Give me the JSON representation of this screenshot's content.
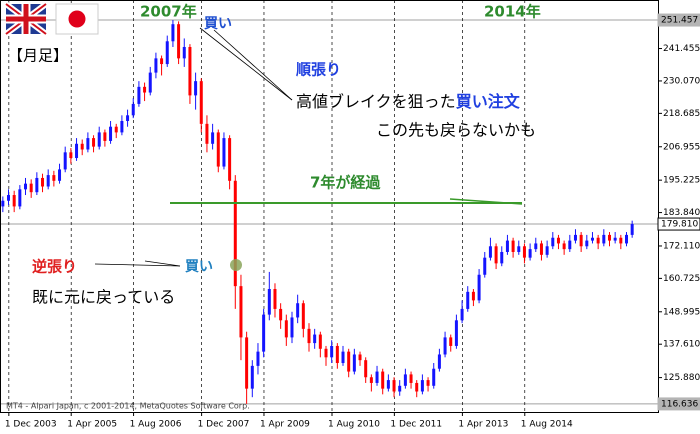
{
  "chart_data": {
    "type": "candlestick",
    "up_color": "#1414ff",
    "down_color": "#ff0000",
    "ylim": [
      114.5,
      258.5
    ],
    "yticks": [
      241.455,
      {
        "value": 230.07,
        "label": "230.070"
      },
      218.685,
      206.955,
      195.225,
      {
        "value": 183.84,
        "label": "183.840"
      },
      {
        "value": 172.11,
        "label": "172.110"
      },
      160.725,
      148.995,
      {
        "value": 137.61,
        "label": "137.610"
      },
      {
        "value": 125.88,
        "label": "125.880"
      }
    ],
    "price_lines": [
      {
        "value": 251.457,
        "color": "#b4b4b4"
      },
      {
        "value": 179.81,
        "label": "179.810",
        "color": "#ffffff"
      },
      {
        "value": 116.636,
        "color": "#b4b4b4"
      }
    ],
    "x_grid": true,
    "categories": [
      "1 Dec 2003",
      null,
      null,
      null,
      null,
      null,
      null,
      null,
      null,
      null,
      null,
      "1 Apr 2005",
      null,
      null,
      null,
      null,
      null,
      null,
      null,
      null,
      null,
      null,
      "1 Aug 2006",
      null,
      null,
      null,
      null,
      null,
      null,
      null,
      null,
      null,
      null,
      null,
      "1 Dec 2007",
      null,
      null,
      null,
      null,
      null,
      null,
      null,
      null,
      null,
      null,
      "1 Apr 2009",
      null,
      null,
      null,
      null,
      null,
      null,
      null,
      null,
      null,
      null,
      null,
      "1 Aug 2010",
      null,
      null,
      null,
      null,
      null,
      null,
      null,
      null,
      null,
      null,
      "1 Dec 2011",
      null,
      null,
      null,
      null,
      null,
      null,
      null,
      null,
      null,
      null,
      null,
      "1 Apr 2013",
      null,
      null,
      null,
      null,
      null,
      null,
      null,
      null,
      null,
      null,
      "1 Aug 2014",
      null,
      null,
      null,
      null,
      null,
      null,
      null,
      null,
      null,
      null,
      null,
      null,
      null,
      null,
      null,
      null,
      null,
      null,
      null,
      null
    ],
    "ohlc": [
      [
        186,
        189.5,
        184,
        188
      ],
      [
        188,
        192,
        186.5,
        190
      ],
      [
        190,
        191.5,
        184,
        186
      ],
      [
        186,
        193.5,
        185,
        192
      ],
      [
        192,
        196,
        190,
        194
      ],
      [
        194,
        195.5,
        189,
        191
      ],
      [
        191,
        198,
        190,
        196
      ],
      [
        196,
        197.5,
        191,
        193
      ],
      [
        193,
        199,
        192,
        197
      ],
      [
        197,
        198.5,
        193,
        195
      ],
      [
        195,
        201,
        194,
        199
      ],
      [
        199,
        207,
        198,
        205
      ],
      [
        205,
        206.5,
        201,
        203
      ],
      [
        203,
        210,
        202,
        208
      ],
      [
        208,
        209.5,
        204,
        206
      ],
      [
        206,
        212,
        205,
        210
      ],
      [
        210,
        211,
        205,
        207
      ],
      [
        207,
        214,
        206,
        212
      ],
      [
        212,
        213,
        207,
        209
      ],
      [
        209,
        216,
        208,
        214
      ],
      [
        214,
        215,
        210,
        212
      ],
      [
        212,
        218,
        211,
        216
      ],
      [
        216,
        220,
        214,
        218
      ],
      [
        218,
        224,
        217,
        222
      ],
      [
        222,
        230,
        221,
        228
      ],
      [
        228,
        229.5,
        223,
        226
      ],
      [
        226,
        235,
        225,
        233
      ],
      [
        233,
        240,
        231,
        238
      ],
      [
        238,
        239,
        232,
        236
      ],
      [
        236,
        246,
        235,
        244
      ],
      [
        244,
        251.457,
        242,
        250
      ],
      [
        250,
        251,
        236,
        238
      ],
      [
        238,
        245,
        235,
        242
      ],
      [
        242,
        243,
        222,
        225
      ],
      [
        225,
        233,
        220,
        230
      ],
      [
        230,
        231,
        212,
        215
      ],
      [
        215,
        218,
        205,
        208
      ],
      [
        208,
        215,
        206,
        212
      ],
      [
        212,
        213,
        198,
        200
      ],
      [
        200,
        212,
        199,
        210
      ],
      [
        210,
        211,
        192,
        195
      ],
      [
        195,
        197,
        150,
        158
      ],
      [
        158,
        162,
        132,
        140
      ],
      [
        140,
        142,
        116.636,
        122
      ],
      [
        122,
        132,
        119,
        130
      ],
      [
        130,
        138,
        127,
        135
      ],
      [
        135,
        150,
        133,
        148
      ],
      [
        148,
        163,
        146,
        157
      ],
      [
        157,
        159,
        147,
        150
      ],
      [
        150,
        152,
        143,
        146
      ],
      [
        146,
        148,
        137,
        140
      ],
      [
        140,
        149,
        138,
        147
      ],
      [
        147,
        155,
        145,
        152
      ],
      [
        152,
        153,
        140,
        143
      ],
      [
        143,
        145,
        135,
        138
      ],
      [
        138,
        143,
        136,
        141
      ],
      [
        141,
        142,
        133,
        136
      ],
      [
        136,
        137,
        130,
        133
      ],
      [
        133,
        139,
        131,
        137
      ],
      [
        137,
        138,
        129,
        131
      ],
      [
        131,
        137,
        130,
        135
      ],
      [
        135,
        136,
        126,
        128
      ],
      [
        128,
        136,
        127,
        134
      ],
      [
        134,
        135,
        130,
        132
      ],
      [
        132,
        133,
        124,
        126
      ],
      [
        126,
        127,
        121,
        124
      ],
      [
        124,
        130,
        123,
        128
      ],
      [
        128,
        129,
        120,
        122
      ],
      [
        122,
        127,
        121,
        125
      ],
      [
        125,
        126,
        119,
        121
      ],
      [
        121,
        125,
        119.5,
        123
      ],
      [
        123,
        129,
        122,
        127
      ],
      [
        127,
        128,
        122,
        124
      ],
      [
        124,
        125,
        119,
        121
      ],
      [
        121,
        127,
        120,
        125
      ],
      [
        125,
        126,
        121,
        123
      ],
      [
        123,
        131,
        122,
        129
      ],
      [
        129,
        136,
        128,
        134
      ],
      [
        134,
        142,
        133,
        140
      ],
      [
        140,
        141,
        135,
        137
      ],
      [
        137,
        148,
        136,
        146
      ],
      [
        146,
        153,
        145,
        150
      ],
      [
        150,
        158,
        149,
        156
      ],
      [
        156,
        157,
        151,
        153
      ],
      [
        153,
        164,
        152,
        162
      ],
      [
        162,
        170,
        161,
        168
      ],
      [
        168,
        175,
        167,
        172
      ],
      [
        172,
        173,
        164,
        166
      ],
      [
        166,
        172,
        165,
        170
      ],
      [
        170,
        176,
        169,
        174
      ],
      [
        174,
        175,
        168,
        170
      ],
      [
        170,
        174,
        169,
        172
      ],
      [
        172,
        173,
        166,
        168
      ],
      [
        168,
        173,
        167,
        171
      ],
      [
        171,
        175,
        170,
        173
      ],
      [
        173,
        174,
        167,
        169
      ],
      [
        169,
        174,
        168,
        172
      ],
      [
        172,
        177,
        171,
        175
      ],
      [
        175,
        176,
        171,
        173
      ],
      [
        173,
        174,
        169,
        171
      ],
      [
        171,
        176,
        170,
        174
      ],
      [
        174,
        178,
        173,
        176
      ],
      [
        176,
        177,
        170,
        172
      ],
      [
        172,
        176,
        171,
        174
      ],
      [
        174,
        177,
        173,
        175
      ],
      [
        175,
        176,
        171,
        173
      ],
      [
        173,
        178,
        172,
        176
      ],
      [
        176,
        177,
        172,
        174
      ],
      [
        174,
        177,
        173,
        175
      ],
      [
        175,
        176,
        171,
        173
      ],
      [
        173,
        177,
        172,
        176
      ],
      [
        176,
        181,
        175,
        179.81
      ]
    ],
    "annotations": {
      "year_2007": "2007年",
      "buy_2007": "買い",
      "year_2014": "2014年",
      "timeframe": "【月足】",
      "trend_follow": "順張り",
      "breakout_text": "高値ブレイクを狙った",
      "buy_order": "買い注文",
      "may_not_return": "この先も戻らないかも",
      "seven_years": "7年が経過",
      "contrarian": "逆張り",
      "buy_contrarian": "買い",
      "already_back": "既に元に戻っている",
      "copyright": "MT4 - Alpari Japan, c 2001-2014, MetaQuotes Software Corp."
    }
  }
}
